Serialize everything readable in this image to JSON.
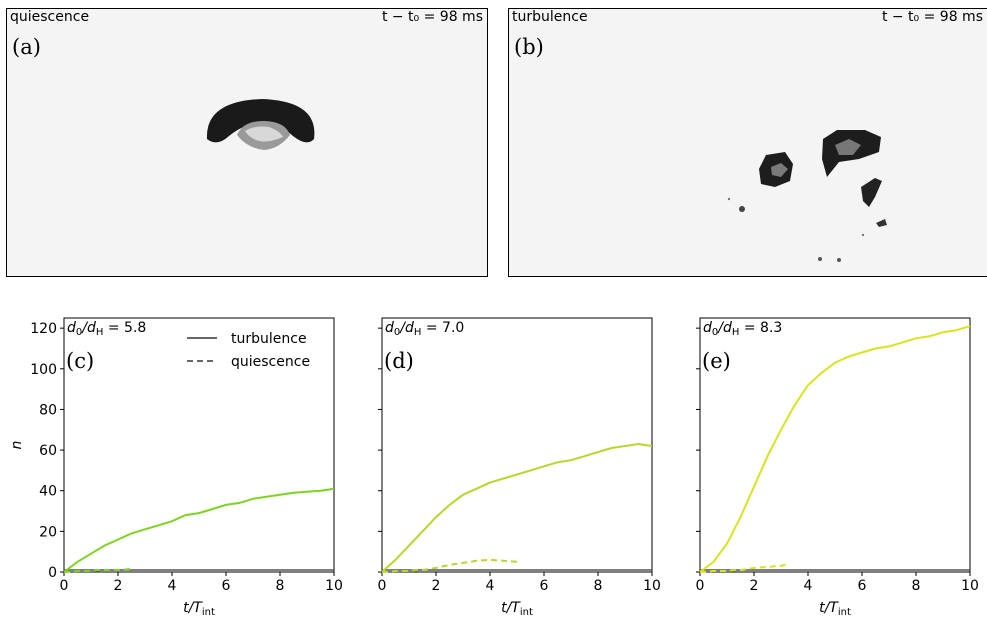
{
  "photos": [
    {
      "condition": "quiescence",
      "time_label": "t − t₀ = 98 ms",
      "tag": "(a)"
    },
    {
      "condition": "turbulence",
      "time_label": "t − t₀ = 98 ms",
      "tag": "(b)"
    }
  ],
  "legend": {
    "solid": "turbulence",
    "dashed": "quiescence"
  },
  "colors": {
    "panel_c": "#7ed321",
    "panel_d": "#b5d82c",
    "panel_e": "#d7e41f",
    "baseline": "#555555"
  },
  "chart_data": [
    {
      "type": "line",
      "tag": "(c)",
      "annotation": "d₀/d_H = 5.8",
      "xlabel": "t/T_int",
      "ylabel": "n",
      "xlim": [
        0,
        10
      ],
      "ylim": [
        0,
        125
      ],
      "xticks": [
        "0",
        "2",
        "4",
        "6",
        "8",
        "10"
      ],
      "yticks": [
        "0",
        "20",
        "40",
        "60",
        "80",
        "100",
        "120"
      ],
      "series": [
        {
          "name": "turbulence",
          "style": "solid",
          "x": [
            0,
            0.5,
            1,
            1.5,
            2,
            2.5,
            3,
            3.5,
            4,
            4.5,
            5,
            5.5,
            6,
            6.5,
            7,
            7.5,
            8,
            8.5,
            9,
            9.5,
            10
          ],
          "y": [
            0,
            5,
            9,
            13,
            16,
            19,
            21,
            23,
            25,
            28,
            29,
            31,
            33,
            34,
            36,
            37,
            38,
            39,
            39.5,
            40,
            41
          ]
        },
        {
          "name": "quiescence",
          "style": "dashed",
          "x": [
            0,
            0.5,
            1,
            1.5,
            2,
            2.5
          ],
          "y": [
            0,
            0.5,
            0.5,
            1,
            1,
            1.5
          ]
        }
      ]
    },
    {
      "type": "line",
      "tag": "(d)",
      "annotation": "d₀/d_H = 7.0",
      "xlabel": "t/T_int",
      "ylabel": "",
      "xlim": [
        0,
        10
      ],
      "ylim": [
        0,
        125
      ],
      "xticks": [
        "0",
        "2",
        "4",
        "6",
        "8",
        "10"
      ],
      "yticks": [],
      "series": [
        {
          "name": "turbulence",
          "style": "solid",
          "x": [
            0,
            0.5,
            1,
            1.5,
            2,
            2.5,
            3,
            3.5,
            4,
            4.5,
            5,
            5.5,
            6,
            6.5,
            7,
            7.5,
            8,
            8.5,
            9,
            9.5,
            10
          ],
          "y": [
            0,
            6,
            13,
            20,
            27,
            33,
            38,
            41,
            44,
            46,
            48,
            50,
            52,
            54,
            55,
            57,
            59,
            61,
            62,
            63,
            62
          ]
        },
        {
          "name": "quiescence",
          "style": "dashed",
          "x": [
            0,
            0.5,
            1,
            1.5,
            2,
            2.5,
            3,
            3.5,
            4,
            4.5,
            5
          ],
          "y": [
            0,
            0.5,
            0.5,
            1,
            2,
            3.5,
            4.5,
            5.5,
            6,
            5.5,
            5
          ]
        }
      ]
    },
    {
      "type": "line",
      "tag": "(e)",
      "annotation": "d₀/d_H = 8.3",
      "xlabel": "t/T_int",
      "ylabel": "",
      "xlim": [
        0,
        10
      ],
      "ylim": [
        0,
        125
      ],
      "xticks": [
        "0",
        "2",
        "4",
        "6",
        "8",
        "10"
      ],
      "yticks": [],
      "series": [
        {
          "name": "turbulence",
          "style": "solid",
          "x": [
            0,
            0.5,
            1,
            1.5,
            2,
            2.5,
            3,
            3.5,
            4,
            4.5,
            5,
            5.5,
            6,
            6.5,
            7,
            7.5,
            8,
            8.5,
            9,
            9.5,
            10
          ],
          "y": [
            0,
            5,
            14,
            27,
            42,
            57,
            70,
            82,
            92,
            98,
            103,
            106,
            108,
            110,
            111,
            113,
            115,
            116,
            118,
            119,
            121
          ]
        },
        {
          "name": "quiescence",
          "style": "dashed",
          "x": [
            0,
            0.5,
            1,
            1.5,
            2,
            2.5,
            3,
            3.3
          ],
          "y": [
            0,
            0.5,
            0.5,
            1,
            2,
            2.5,
            3,
            4
          ]
        }
      ]
    }
  ]
}
